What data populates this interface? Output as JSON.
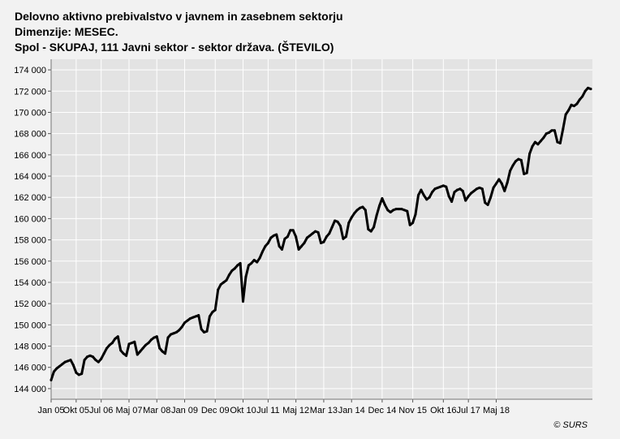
{
  "header": {
    "title": "Delovno aktivno prebivalstvo v javnem in zasebnem sektorju",
    "dimensions": "Dimenzije: MESEC.",
    "series_label": "Spol - SKUPAJ, 111 Javni sektor - sektor država. (ŠTEVILO)"
  },
  "credit": "© SURS",
  "colors": {
    "background": "#f2f2f2",
    "plot_area": "#e3e3e3",
    "grid": "#ffffff",
    "line": "#000000"
  },
  "chart_data": {
    "type": "line",
    "title": "Delovno aktivno prebivalstvo v javnem in zasebnem sektorju",
    "xlabel": "",
    "ylabel": "",
    "ylim": [
      143000,
      175000
    ],
    "y_ticks": [
      144000,
      146000,
      148000,
      150000,
      152000,
      154000,
      156000,
      158000,
      160000,
      162000,
      164000,
      166000,
      168000,
      170000,
      172000,
      174000
    ],
    "y_tick_labels": [
      "144 000",
      "146 000",
      "148 000",
      "150 000",
      "152 000",
      "154 000",
      "156 000",
      "158 000",
      "160 000",
      "162 000",
      "164 000",
      "166 000",
      "168 000",
      "170 000",
      "172 000",
      "174 000"
    ],
    "x_tick_labels": [
      "Jan 05",
      "Okt 05",
      "Jul 06",
      "Maj 07",
      "Mar 08",
      "Jan 09",
      "Dec 09",
      "Okt 10",
      "Jul 11",
      "Maj 12",
      "Mar 13",
      "Jan 14",
      "Dec 14",
      "Nov 15",
      "Okt 16",
      "Jul 17",
      "Maj 18"
    ],
    "x_tick_month_index": [
      0,
      9,
      18,
      28,
      38,
      48,
      59,
      69,
      78,
      88,
      98,
      108,
      119,
      130,
      141,
      150,
      160
    ],
    "grid": true,
    "legend": "none",
    "series": [
      {
        "values": [
          144800,
          145600,
          145900,
          146100,
          146300,
          146500,
          146600,
          146700,
          146200,
          145500,
          145300,
          145400,
          146700,
          147000,
          147100,
          147000,
          146700,
          146500,
          146800,
          147300,
          147800,
          148100,
          148300,
          148700,
          148900,
          147600,
          147300,
          147100,
          148200,
          148300,
          148400,
          147200,
          147500,
          147800,
          148100,
          148300,
          148600,
          148800,
          148900,
          147800,
          147500,
          147300,
          148800,
          149100,
          149200,
          149300,
          149500,
          149800,
          150200,
          150400,
          150600,
          150700,
          150800,
          150900,
          149600,
          149300,
          149400,
          150800,
          151200,
          151400,
          153300,
          153800,
          154000,
          154200,
          154700,
          155100,
          155300,
          155600,
          155800,
          152200,
          154500,
          155600,
          155800,
          156100,
          155900,
          156300,
          156900,
          157400,
          157700,
          158200,
          158400,
          158500,
          157400,
          157100,
          158100,
          158300,
          158900,
          158900,
          158300,
          157100,
          157400,
          157700,
          158200,
          158400,
          158600,
          158800,
          158700,
          157700,
          157800,
          158300,
          158600,
          159200,
          159800,
          159700,
          159300,
          158100,
          158300,
          159600,
          160100,
          160500,
          160800,
          161000,
          161100,
          160800,
          159000,
          158800,
          159200,
          160300,
          161200,
          161900,
          161300,
          160800,
          160600,
          160800,
          160900,
          160900,
          160900,
          160800,
          160700,
          159400,
          159600,
          160400,
          162200,
          162700,
          162200,
          161800,
          162000,
          162500,
          162800,
          162900,
          163000,
          163100,
          163000,
          162100,
          161600,
          162500,
          162700,
          162800,
          162600,
          161700,
          162100,
          162400,
          162600,
          162800,
          162900,
          162800,
          161500,
          161300,
          162000,
          162900,
          163300,
          163700,
          163300,
          162600,
          163400,
          164500,
          165000,
          165400,
          165600,
          165500,
          164200,
          164300,
          166100,
          166800,
          167200,
          167000,
          167300,
          167600,
          168000,
          168100,
          168300,
          168300,
          167200,
          167100,
          168400,
          169800,
          170200,
          170700,
          170600,
          170800,
          171200,
          171500,
          172000,
          172300,
          172200
        ]
      }
    ]
  }
}
